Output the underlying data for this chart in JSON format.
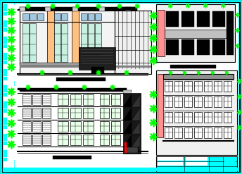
{
  "bg_color": "#000000",
  "outer_border_color": "#00ffff",
  "white": "#ffffff",
  "black": "#000000",
  "green": "#00ff00",
  "cyan": "#00ffff",
  "orange": "#ffc080",
  "blue_win": "#6090c0",
  "cyan_win": "#c0ffe0",
  "gray": "#a0a0a0",
  "pink": "#ff9090",
  "dark": "#181818",
  "figsize": [
    3.44,
    2.47
  ],
  "dpi": 100
}
